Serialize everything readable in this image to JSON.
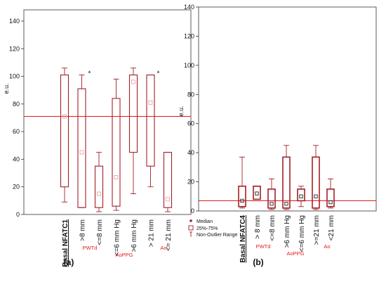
{
  "chart_data": [
    {
      "type": "box",
      "panel_label": "(a)",
      "ylabel": "e.u.",
      "ylim": [
        0,
        150
      ],
      "yticks": [
        0,
        20,
        40,
        60,
        80,
        100,
        120,
        140
      ],
      "grid": false,
      "reference_line": 71,
      "categories": [
        "Basal NFATC1",
        ">8 mm",
        "<=8 mm",
        "<=6 mm Hg",
        ">6 mm Hg",
        "> 21 mm",
        "<= 21 mm"
      ],
      "median": [
        71,
        45,
        15,
        27,
        96,
        81,
        11
      ],
      "q1": [
        20,
        5,
        5,
        6,
        45,
        35,
        5
      ],
      "q3": [
        101,
        91,
        35,
        84,
        101,
        101,
        45
      ],
      "whisker_low": [
        9,
        5,
        2,
        3,
        15,
        20,
        2
      ],
      "whisker_high": [
        106,
        101,
        45,
        98,
        106,
        101,
        45
      ],
      "star_marks": [
        "",
        "*",
        "",
        "",
        "",
        "*",
        ""
      ],
      "groups": [
        {
          "label": "PWTd"
        },
        {
          "label": "AoPPG"
        },
        {
          "label": "Ao"
        }
      ],
      "legend": [
        "Median",
        "25%-75%",
        "Non-Outlier Range"
      ]
    },
    {
      "type": "box",
      "panel_label": "(b)",
      "ylabel": "e.u.",
      "ylim": [
        0,
        140
      ],
      "yticks": [
        0,
        20,
        40,
        60,
        80,
        100,
        120,
        140
      ],
      "grid": false,
      "reference_line": 7,
      "categories": [
        "Basal NFATC4",
        "> 8 mm",
        "<=8 mm",
        ">6 mm Hg",
        "<=6 mm Hg",
        ">=21 mm",
        "<21 mm"
      ],
      "median": [
        7,
        12,
        5,
        5,
        10,
        10,
        6
      ],
      "q1": [
        3,
        8,
        2,
        2,
        7,
        2,
        3
      ],
      "q3": [
        17,
        17,
        15,
        37,
        15,
        37,
        15
      ],
      "whisker_low": [
        2,
        8,
        1,
        1,
        3,
        1,
        2
      ],
      "whisker_high": [
        37,
        17,
        22,
        45,
        17,
        45,
        22
      ],
      "groups": [
        {
          "label": "PWTd"
        },
        {
          "label": "AoPPG"
        },
        {
          "label": "Ao"
        }
      ]
    }
  ],
  "colors": {
    "box": "#a31f26",
    "reference_line": "#e11b1b",
    "group_label": "#e31a1c",
    "axis": "#333333",
    "text": "#111111"
  }
}
